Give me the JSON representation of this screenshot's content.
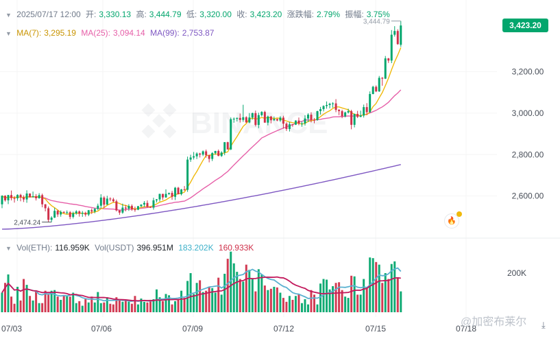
{
  "info": {
    "datetime": "2025/07/17 12:00",
    "open_label": "开:",
    "open": "3,330.13",
    "high_label": "高:",
    "high": "3,444.79",
    "low_label": "低:",
    "low": "3,320.00",
    "close_label": "收:",
    "close": "3,423.20",
    "change_label": "涨跌幅:",
    "change": "2.79%",
    "amp_label": "振幅:",
    "amp": "3.75%"
  },
  "ma": {
    "ma7_label": "MA(7):",
    "ma7": "3,295.19",
    "ma25_label": "MA(25):",
    "ma25": "3,094.14",
    "ma99_label": "MA(99):",
    "ma99": "2,753.87"
  },
  "vol": {
    "eth_label": "Vol(ETH):",
    "eth": "116.959K",
    "usdt_label": "Vol(USDT)",
    "usdt": "396.951M",
    "usdt_ma1": "183.202K",
    "usdt_ma2": "160.933K"
  },
  "current_price": "3,423.20",
  "watermark": "@加密布莱尔",
  "logo_text": "BINANCE",
  "colors": {
    "up": "#03a66d",
    "down": "#cf304a",
    "ma7": "#f0b90b",
    "ma25": "#e65fa8",
    "ma99": "#7e57c2",
    "vol_ma1": "#5ab1d0",
    "vol_ma2": "#c2185b"
  },
  "chart_data": {
    "type": "candlestick",
    "interval": "4h",
    "price_ylim": [
      2420,
      3480
    ],
    "price_ticks": [
      2600,
      2800,
      3000,
      3200
    ],
    "price_tick_labels": [
      "2,600.00",
      "2,800.00",
      "3,000.00",
      "3,200.00"
    ],
    "high_annotation": "3,444.79",
    "low_annotation": "2,474.24",
    "volume_tick_labels": [
      "200K"
    ],
    "date_labels": [
      "07/03",
      "07/06",
      "07/09",
      "07/12",
      "07/15",
      "07/18"
    ],
    "candles": [
      [
        2560.0,
        2601.4,
        2541.4,
        2603.0,
        30
      ],
      [
        2601.4,
        2579.4,
        2573.2,
        2603.7,
        45
      ],
      [
        2579.4,
        2604.9,
        2561.0,
        2605.5,
        58
      ],
      [
        2604.9,
        2590.0,
        2578.8,
        2626.6,
        24
      ],
      [
        2590.0,
        2589.0,
        2568.3,
        2599.4,
        13
      ],
      [
        2589.0,
        2605.7,
        2577.1,
        2608.3,
        39
      ],
      [
        2605.7,
        2593.4,
        2574.6,
        2610.8,
        18
      ],
      [
        2593.4,
        2583.5,
        2571.1,
        2603.4,
        51
      ],
      [
        2583.5,
        2612.2,
        2567.4,
        2627.6,
        42
      ],
      [
        2612.2,
        2594.3,
        2593.1,
        2612.7,
        25
      ],
      [
        2594.3,
        2599.0,
        2593.5,
        2621.5,
        18
      ],
      [
        2599.0,
        2589.3,
        2578.5,
        2609.5,
        32
      ],
      [
        2589.3,
        2604.5,
        2587.2,
        2614.1,
        14
      ],
      [
        2604.5,
        2560.2,
        2545.6,
        2611.6,
        14
      ],
      [
        2560.2,
        2541.0,
        2526.0,
        2561.3,
        33
      ],
      [
        2541.0,
        2485.0,
        2474.2,
        2549.7,
        29
      ],
      [
        2485.0,
        2495.7,
        2474.2,
        2502.5,
        33
      ],
      [
        2495.7,
        2528.6,
        2494.2,
        2543.2,
        34
      ],
      [
        2528.6,
        2511.0,
        2499.1,
        2534.1,
        24
      ],
      [
        2511.0,
        2523.4,
        2500.3,
        2530.7,
        19
      ],
      [
        2523.4,
        2519.4,
        2516.7,
        2525.9,
        25
      ],
      [
        2519.4,
        2521.9,
        2511.8,
        2530.5,
        26
      ],
      [
        2521.9,
        2499.3,
        2488.2,
        2527.5,
        24
      ],
      [
        2499.3,
        2516.8,
        2491.7,
        2524.6,
        30
      ],
      [
        2516.8,
        2525.8,
        2510.2,
        2531.8,
        14
      ],
      [
        2525.8,
        2514.5,
        2500.5,
        2530.4,
        17
      ],
      [
        2514.5,
        2518.7,
        2499.6,
        2527.6,
        10
      ],
      [
        2518.7,
        2510.5,
        2500.9,
        2524.3,
        20
      ],
      [
        2510.5,
        2531.7,
        2503.0,
        2532.0,
        15
      ],
      [
        2531.7,
        2525.3,
        2513.4,
        2540.2,
        24
      ],
      [
        2525.3,
        2537.6,
        2516.7,
        2542.4,
        15
      ],
      [
        2537.6,
        2553.3,
        2531.5,
        2563.3,
        31
      ],
      [
        2553.3,
        2592.7,
        2540.7,
        2608.7,
        14
      ],
      [
        2592.7,
        2558.4,
        2543.3,
        2599.6,
        15
      ],
      [
        2558.4,
        2587.6,
        2557.5,
        2601.2,
        23
      ],
      [
        2587.6,
        2584.1,
        2575.2,
        2593.9,
        13
      ],
      [
        2584.1,
        2574.7,
        2569.5,
        2591.9,
        12
      ],
      [
        2574.7,
        2530.8,
        2525.5,
        2582.8,
        23
      ],
      [
        2530.8,
        2520.0,
        2509.0,
        2527.1,
        19
      ],
      [
        2520.0,
        2544.1,
        2514.2,
        2563.4,
        16
      ],
      [
        2544.1,
        2539.8,
        2526.1,
        2557.1,
        19
      ],
      [
        2539.8,
        2552.1,
        2528.3,
        2560.7,
        16
      ],
      [
        2552.1,
        2535.4,
        2528.7,
        2559.6,
        13
      ],
      [
        2535.4,
        2534.1,
        2523.9,
        2549.1,
        25
      ],
      [
        2534.1,
        2551.3,
        2531.6,
        2551.7,
        12
      ],
      [
        2551.3,
        2558.9,
        2545.6,
        2559.6,
        21
      ],
      [
        2558.9,
        2566.7,
        2547.5,
        2575.6,
        16
      ],
      [
        2566.7,
        2547.6,
        2544.3,
        2578.7,
        15
      ],
      [
        2547.6,
        2544.1,
        2542.4,
        2550.6,
        19
      ],
      [
        2544.1,
        2579.3,
        2534.2,
        2591.8,
        20
      ],
      [
        2579.3,
        2583.8,
        2569.1,
        2585.7,
        35
      ],
      [
        2583.8,
        2610.3,
        2573.3,
        2611.2,
        23
      ],
      [
        2610.3,
        2593.3,
        2580.9,
        2611.1,
        17
      ],
      [
        2593.3,
        2610.2,
        2591.5,
        2632.5,
        28
      ],
      [
        2610.2,
        2615.2,
        2604.8,
        2616.1,
        26
      ],
      [
        2615.2,
        2596.3,
        2581.7,
        2625.2,
        12
      ],
      [
        2596.3,
        2640.0,
        2580.8,
        2643.9,
        17
      ],
      [
        2640.0,
        2609.3,
        2608.1,
        2644.1,
        20
      ],
      [
        2609.3,
        2631.8,
        2602.9,
        2634.2,
        33
      ],
      [
        2631.8,
        2630.1,
        2625.8,
        2648.2,
        22
      ],
      [
        2630.1,
        2775.8,
        2620.1,
        2790.3,
        48
      ],
      [
        2775.8,
        2786.1,
        2764.8,
        2799.2,
        60
      ],
      [
        2786.1,
        2791.8,
        2776.3,
        2812.5,
        28
      ],
      [
        2791.8,
        2805.1,
        2778.4,
        2811.0,
        45
      ],
      [
        2805.1,
        2800.1,
        2786.1,
        2808.7,
        49
      ],
      [
        2800.1,
        2815.7,
        2793.0,
        2820.0,
        31
      ],
      [
        2815.7,
        2796.9,
        2785.1,
        2824.3,
        33
      ],
      [
        2796.9,
        2779.2,
        2762.5,
        2799.0,
        39
      ],
      [
        2779.2,
        2807.1,
        2769.0,
        2811.8,
        37
      ],
      [
        2807.1,
        2817.5,
        2799.5,
        2818.3,
        30
      ],
      [
        2817.5,
        2793.6,
        2792.0,
        2824.3,
        53
      ],
      [
        2793.6,
        2810.0,
        2788.8,
        2816.4,
        27
      ],
      [
        2810.0,
        2859.9,
        2797.1,
        2860.3,
        59
      ],
      [
        2859.9,
        2824.9,
        2824.2,
        2862.0,
        82
      ],
      [
        2824.9,
        2971.0,
        2821.8,
        2979.1,
        93
      ],
      [
        2971.0,
        2973.0,
        2953.9,
        2979.3,
        75
      ],
      [
        2973.0,
        2977.2,
        2960.0,
        2978.5,
        62
      ],
      [
        2977.2,
        2967.3,
        2954.8,
        2998.0,
        51
      ],
      [
        2967.3,
        2980.4,
        2958.0,
        3040.6,
        47
      ],
      [
        2980.4,
        2955.1,
        2954.0,
        2985.3,
        73
      ],
      [
        2955.1,
        2979.0,
        2951.6,
        3000.6,
        65
      ],
      [
        2979.0,
        3000.2,
        2969.1,
        3002.3,
        51
      ],
      [
        3000.2,
        2943.5,
        2935.8,
        3012.3,
        32
      ],
      [
        2943.5,
        2990.5,
        2927.5,
        3002.3,
        66
      ],
      [
        2990.5,
        3005.7,
        2984.1,
        3009.5,
        58
      ],
      [
        3005.7,
        2954.2,
        2954.0,
        3011.6,
        41
      ],
      [
        2954.2,
        2983.6,
        2941.1,
        2988.2,
        34
      ],
      [
        2983.6,
        2965.9,
        2950.8,
        2986.8,
        36
      ],
      [
        2965.9,
        2971.4,
        2962.3,
        2983.7,
        39
      ],
      [
        2971.4,
        2964.8,
        2960.8,
        2974.0,
        38
      ],
      [
        2964.8,
        2978.4,
        2958.1,
        2985.4,
        30
      ],
      [
        2978.4,
        2949.3,
        2925.8,
        2987.4,
        22
      ],
      [
        2949.3,
        2923.6,
        2914.1,
        2956.3,
        16
      ],
      [
        2923.6,
        2946.2,
        2911.4,
        2957.7,
        25
      ],
      [
        2946.2,
        2944.6,
        2934.4,
        2947.6,
        19
      ],
      [
        2944.6,
        2964.3,
        2942.8,
        2965.7,
        25
      ],
      [
        2964.3,
        2949.5,
        2941.6,
        2978.9,
        28
      ],
      [
        2949.5,
        2950.6,
        2934.2,
        2959.6,
        14
      ],
      [
        2950.6,
        2974.2,
        2940.2,
        2990.3,
        20
      ],
      [
        2974.2,
        2992.8,
        2957.1,
        2999.6,
        12
      ],
      [
        2992.8,
        2967.9,
        2955.3,
        3004.4,
        34
      ],
      [
        2967.9,
        2966.5,
        2951.3,
        2976.3,
        27
      ],
      [
        2966.5,
        3009.7,
        2963.4,
        3011.6,
        12
      ],
      [
        3009.7,
        3019.3,
        2993.4,
        3030.1,
        44
      ],
      [
        3019.3,
        3034.3,
        3008.4,
        3038.1,
        51
      ],
      [
        3034.3,
        3039.4,
        3021.5,
        3056.7,
        50
      ],
      [
        3039.4,
        3045.3,
        3023.2,
        3050.4,
        35
      ],
      [
        3045.3,
        3047.2,
        3026.4,
        3052.7,
        40
      ],
      [
        3047.2,
        3015.7,
        3004.9,
        3067.6,
        45
      ],
      [
        3015.7,
        3009.6,
        2990.5,
        3019.6,
        46
      ],
      [
        3009.6,
        2985.1,
        2975.7,
        3016.5,
        34
      ],
      [
        2985.1,
        3003.5,
        2979.8,
        3007.4,
        24
      ],
      [
        3003.5,
        3009.7,
        2998.2,
        3021.4,
        22
      ],
      [
        3009.7,
        2943.8,
        2922.1,
        3016.4,
        56
      ],
      [
        2943.8,
        2996.2,
        2931.3,
        2997.8,
        55
      ],
      [
        2996.2,
        2982.2,
        2976.3,
        3011.1,
        27
      ],
      [
        2982.2,
        2988.5,
        2980.3,
        3012.2,
        27
      ],
      [
        2988.5,
        3029.2,
        2978.9,
        3041.4,
        51
      ],
      [
        3029.2,
        3004.7,
        2990.5,
        3048.4,
        38
      ],
      [
        3004.7,
        3092.4,
        3002.4,
        3105.1,
        84
      ],
      [
        3092.4,
        3127.3,
        3091.1,
        3132.3,
        83
      ],
      [
        3127.3,
        3105.1,
        3101.6,
        3133.9,
        77
      ],
      [
        3105.1,
        3170.5,
        3102.5,
        3179.7,
        73
      ],
      [
        3170.5,
        3166.6,
        3132.4,
        3174.2,
        45
      ],
      [
        3166.6,
        3264.4,
        3164.7,
        3275.9,
        60
      ],
      [
        3264.4,
        3253.9,
        3242.3,
        3266.7,
        51
      ],
      [
        3253.9,
        3378.6,
        3241.5,
        3401.2,
        74
      ],
      [
        3378.6,
        3396.6,
        3369.5,
        3420.0,
        78
      ],
      [
        3396.6,
        3333.3,
        3330.1,
        3405.0,
        53
      ],
      [
        3330.1,
        3423.2,
        3320.0,
        3444.8,
        32
      ]
    ]
  }
}
